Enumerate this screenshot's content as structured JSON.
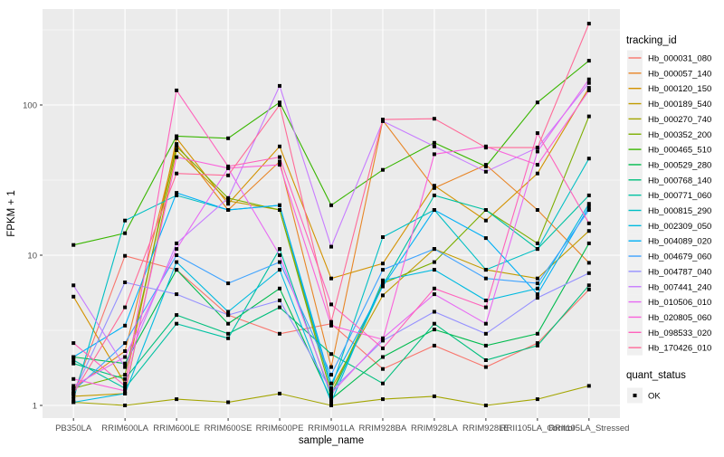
{
  "figure": {
    "background": "#FFFFFF",
    "panel_background": "#EBEBEB",
    "grid_color": "#FFFFFF",
    "tick_color": "#333333",
    "tick_label_color": "#4D4D4D",
    "marker_color": "#000000"
  },
  "chart_data": {
    "type": "line",
    "title": "",
    "xlabel": "sample_name",
    "ylabel": "FPKM + 1",
    "y_scale": "log10",
    "y_ticks": [
      1,
      10,
      100
    ],
    "y_minor_ticks": [
      3.1623,
      31.623,
      316.23
    ],
    "ylim": [
      0.83,
      435
    ],
    "grid": true,
    "legend_position": "right",
    "marker": {
      "shape": "filled-square",
      "color": "#000000"
    },
    "categories": [
      "PB350LA",
      "RRIM600LA",
      "RRIM600LE",
      "RRIM600SE",
      "RRIM600PE",
      "RRIM901LA",
      "RRIM928BA",
      "RRIM928LA",
      "RRIM928LE",
      "RRII105LA_Control",
      "RRII105LA_Stressed"
    ],
    "series": [
      {
        "name": "Hb_000031_080",
        "color": "#F8766D",
        "values": [
          1.2,
          9.9,
          8.0,
          4.0,
          3.0,
          3.5,
          1.75,
          2.5,
          1.8,
          2.6,
          5.9
        ]
      },
      {
        "name": "Hb_000057_140",
        "color": "#E88526",
        "values": [
          1.3,
          2.3,
          55,
          20,
          42,
          1.8,
          79,
          28,
          40,
          20,
          8.9
        ]
      },
      {
        "name": "Hb_000120_150",
        "color": "#D39200",
        "values": [
          5.3,
          1.4,
          60,
          22,
          53,
          7.0,
          8.8,
          29,
          17,
          35,
          130
        ]
      },
      {
        "name": "Hb_000189_540",
        "color": "#C09B00",
        "values": [
          1.15,
          1.2,
          50,
          23,
          20,
          1.3,
          5.4,
          11,
          8.0,
          7.0,
          14.5
        ]
      },
      {
        "name": "Hb_000270_740",
        "color": "#A3A500",
        "values": [
          1.05,
          1.0,
          1.1,
          1.05,
          1.2,
          1.0,
          1.1,
          1.15,
          1.0,
          1.1,
          1.35
        ]
      },
      {
        "name": "Hb_000352_200",
        "color": "#7CAE00",
        "values": [
          1.3,
          1.6,
          53,
          24,
          20,
          1.2,
          6.5,
          9.0,
          20,
          12,
          84
        ]
      },
      {
        "name": "Hb_000465_510",
        "color": "#39B600",
        "values": [
          11.7,
          14,
          62,
          60,
          104,
          21.5,
          37,
          56,
          39,
          104,
          197
        ]
      },
      {
        "name": "Hb_000529_280",
        "color": "#00BB4E",
        "values": [
          2.1,
          1.9,
          8.0,
          3.5,
          6.0,
          1.1,
          2.1,
          3.2,
          2.5,
          3.0,
          12
        ]
      },
      {
        "name": "Hb_000768_140",
        "color": "#00BF7D",
        "values": [
          1.9,
          1.5,
          4.0,
          3.0,
          4.5,
          2.2,
          1.4,
          3.5,
          2.0,
          2.5,
          6.3
        ]
      },
      {
        "name": "Hb_000771_060",
        "color": "#00C1A2",
        "values": [
          2.0,
          1.3,
          3.5,
          2.8,
          11,
          1.15,
          6.3,
          25,
          20,
          11,
          25
        ]
      },
      {
        "name": "Hb_000815_290",
        "color": "#00BFC4",
        "values": [
          1.1,
          17,
          25,
          20,
          21.5,
          1.3,
          13.2,
          20,
          8.0,
          11,
          44
        ]
      },
      {
        "name": "Hb_002309_050",
        "color": "#00BAE0",
        "values": [
          1.05,
          1.2,
          9.0,
          4.2,
          8.0,
          1.05,
          6.8,
          8.0,
          5.0,
          6.0,
          22
        ]
      },
      {
        "name": "Hb_004089_020",
        "color": "#00B0F6",
        "values": [
          2.1,
          3.4,
          26,
          20,
          21.5,
          1.4,
          6.2,
          20,
          13,
          5.5,
          21
        ]
      },
      {
        "name": "Hb_004679_060",
        "color": "#3FA3FF",
        "values": [
          1.25,
          2.6,
          10,
          6.5,
          9.0,
          1.6,
          8.0,
          11,
          7.0,
          6.5,
          20
        ]
      },
      {
        "name": "Hb_004787_040",
        "color": "#9590FF",
        "values": [
          1.2,
          6.6,
          5.5,
          4.0,
          5.0,
          1.25,
          2.7,
          4.2,
          3.0,
          5.2,
          7.6
        ]
      },
      {
        "name": "Hb_007441_240",
        "color": "#C77CFF",
        "values": [
          6.3,
          1.8,
          12,
          24,
          134,
          11.4,
          78,
          53,
          36,
          52,
          140
        ]
      },
      {
        "name": "Hb_010506_010",
        "color": "#E76BF3",
        "values": [
          1.35,
          2.1,
          11,
          38,
          10,
          1.2,
          2.8,
          5.5,
          3.5,
          49,
          148
        ]
      },
      {
        "name": "Hb_020805_060",
        "color": "#FA62DB",
        "values": [
          1.5,
          1.25,
          45,
          38,
          40,
          3.4,
          2.75,
          47,
          53,
          40,
          125
        ]
      },
      {
        "name": "Hb_098533_020",
        "color": "#FF62BC",
        "values": [
          2.6,
          1.35,
          125,
          39,
          45,
          4.7,
          2.4,
          6.0,
          4.5,
          65,
          16.3
        ]
      },
      {
        "name": "Hb_170426_010",
        "color": "#FF6A98",
        "values": [
          1.2,
          4.5,
          35,
          34,
          100,
          3.6,
          80,
          81,
          52,
          52,
          348
        ]
      }
    ],
    "legend": {
      "series_title": "tracking_id",
      "status_title": "quant_status",
      "status_items": [
        {
          "label": "OK"
        }
      ]
    }
  }
}
